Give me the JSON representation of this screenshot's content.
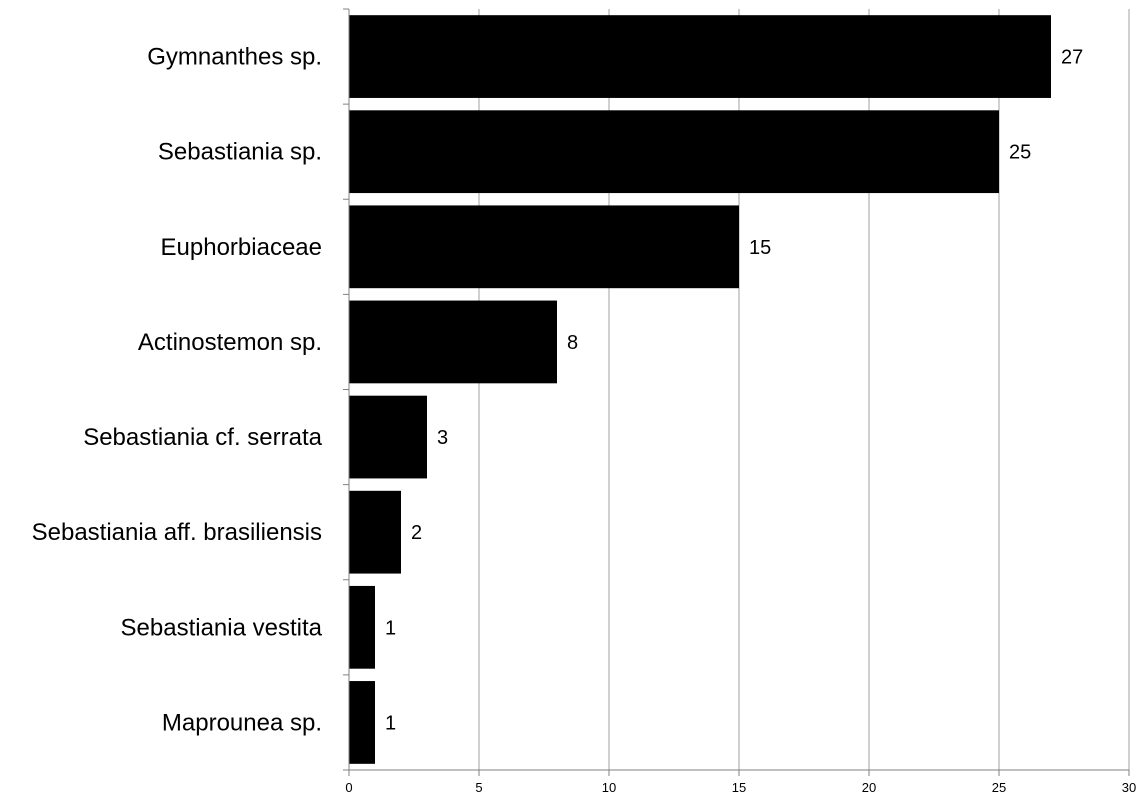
{
  "chart_data": {
    "type": "bar",
    "orientation": "horizontal",
    "title": "",
    "xlabel": "",
    "ylabel": "",
    "categories": [
      "Gymnanthes sp.",
      "Sebastiania sp.",
      "Euphorbiaceae",
      "Actinostemon sp.",
      "Sebastiania cf. serrata",
      "Sebastiania aff. brasiliensis",
      "Sebastiania vestita",
      "Maprounea sp."
    ],
    "values": [
      27,
      25,
      15,
      8,
      3,
      2,
      1,
      1
    ],
    "xlim": [
      0,
      30
    ],
    "xticks": [
      0,
      5,
      10,
      15,
      20,
      25,
      30
    ],
    "grid": "vertical",
    "legend": "none",
    "bar_color": "#000000",
    "grid_color": "#a0a0a0",
    "axis_color": "#808080"
  }
}
